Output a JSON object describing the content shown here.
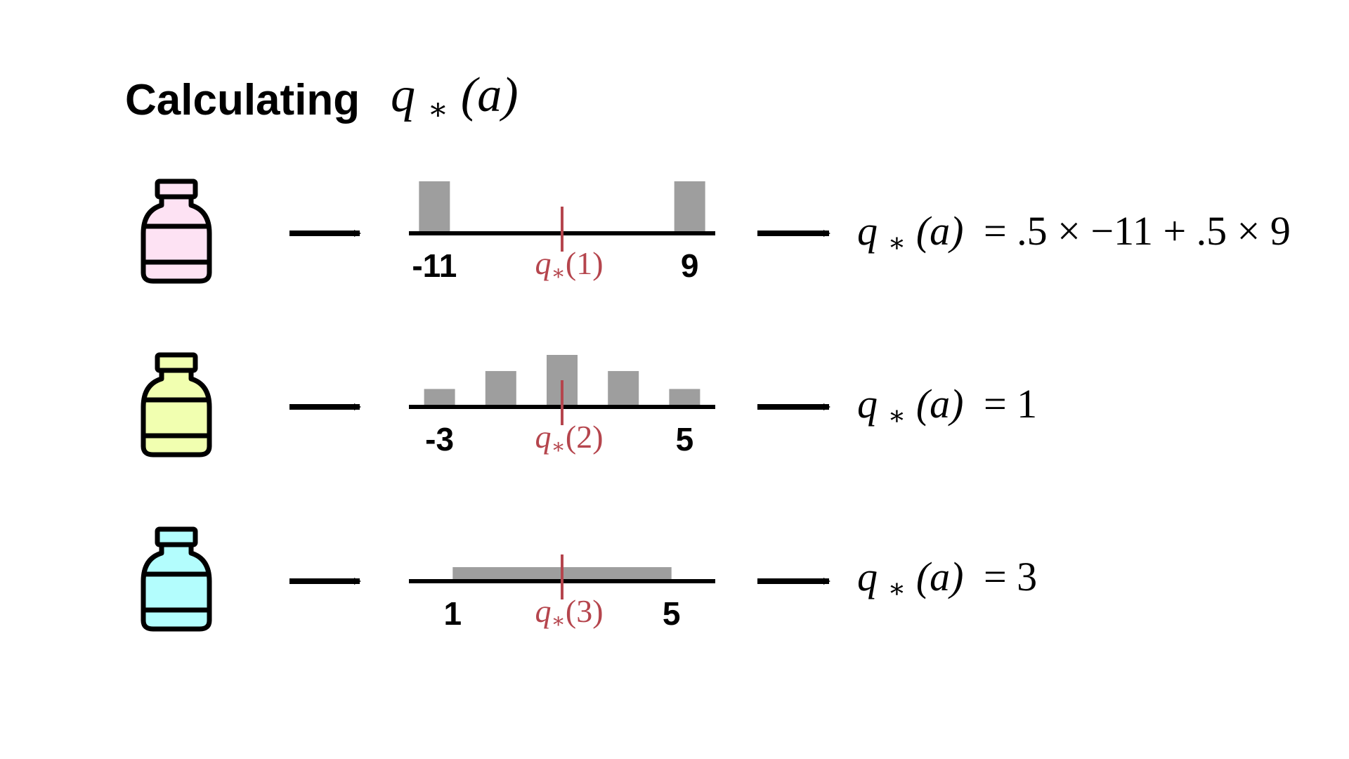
{
  "slide": {
    "title": "Calculating",
    "title_math": {
      "symbol": "q",
      "subscript": "∗",
      "argument": "(a)"
    }
  },
  "colors": {
    "text": "#000000",
    "bar": "#9e9e9e",
    "marker": "#b5454d",
    "bottle_1": "#fde2f3",
    "bottle_2": "#f1ffb0",
    "bottle_3": "#b3fdfd"
  },
  "rows": [
    {
      "bottle_icon": "pink-bottle-icon",
      "distribution": {
        "type": "two-point",
        "x_range": [
          -13,
          11
        ],
        "bars": [
          {
            "x": -11,
            "probability": 0.5
          },
          {
            "x": 9,
            "probability": 0.5
          }
        ],
        "tick_labels": [
          {
            "text": "-11",
            "value": -11
          },
          {
            "text": "9",
            "value": 9
          }
        ],
        "mean": -1,
        "mean_label": {
          "symbol": "q",
          "subscript": "∗",
          "argument": "(1)"
        }
      },
      "result": {
        "lhs": {
          "symbol": "q",
          "subscript": "∗",
          "argument": "(a)"
        },
        "rhs": "= .5 × −11 + .5 × 9"
      }
    },
    {
      "bottle_icon": "yellow-bottle-icon",
      "distribution": {
        "type": "discrete",
        "x_range": [
          -4,
          6
        ],
        "bars": [
          {
            "x": -3,
            "probability": 0.1
          },
          {
            "x": -1,
            "probability": 0.2
          },
          {
            "x": 1,
            "probability": 0.29
          },
          {
            "x": 3,
            "probability": 0.2
          },
          {
            "x": 5,
            "probability": 0.1
          }
        ],
        "tick_labels": [
          {
            "text": "-3",
            "value": -3
          },
          {
            "text": "5",
            "value": 5
          }
        ],
        "mean": 1,
        "mean_label": {
          "symbol": "q",
          "subscript": "∗",
          "argument": "(2)"
        }
      },
      "result": {
        "lhs": {
          "symbol": "q",
          "subscript": "∗",
          "argument": "(a)"
        },
        "rhs": "= 1"
      }
    },
    {
      "bottle_icon": "cyan-bottle-icon",
      "distribution": {
        "type": "uniform",
        "x_range": [
          0.2,
          5.8
        ],
        "uniform_range": [
          1,
          5
        ],
        "density": 0.25,
        "tick_labels": [
          {
            "text": "1",
            "value": 1
          },
          {
            "text": "5",
            "value": 5
          }
        ],
        "mean": 3,
        "mean_label": {
          "symbol": "q",
          "subscript": "∗",
          "argument": "(3)"
        }
      },
      "result": {
        "lhs": {
          "symbol": "q",
          "subscript": "∗",
          "argument": "(a)"
        },
        "rhs": "= 3"
      }
    }
  ]
}
